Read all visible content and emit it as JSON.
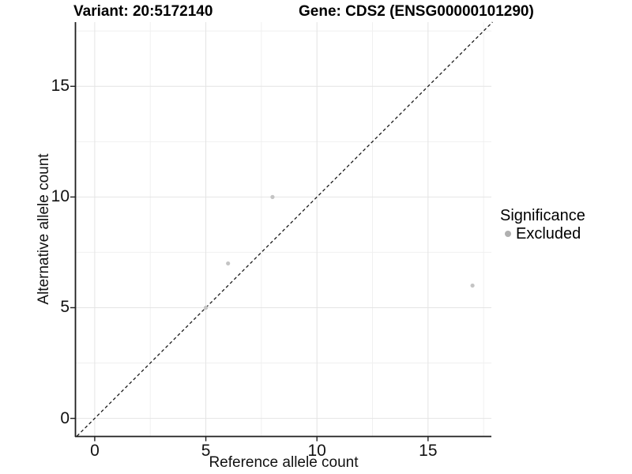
{
  "figure": {
    "title_left": "Variant: 20:5172140",
    "title_right": "Gene: CDS2 (ENSG00000101290)"
  },
  "legend": {
    "title": "Significance",
    "entries": [
      {
        "label": "Excluded",
        "color": "#b0b0b0"
      }
    ]
  },
  "colors": {
    "point": "#c4c4c4",
    "grid_major": "#e4e4e4",
    "grid_minor": "#f0f0f0",
    "axis": "#1f1f1f",
    "reference_line": "#1a1a1a",
    "background": "#ffffff"
  },
  "chart_data": {
    "type": "scatter",
    "xlabel": "Reference allele count",
    "ylabel": "Alternative allele count",
    "xlim": [
      -0.85,
      17.85
    ],
    "ylim": [
      -0.8,
      17.9
    ],
    "x_ticks": [
      0,
      5,
      10,
      15
    ],
    "y_ticks": [
      0,
      5,
      10,
      15
    ],
    "x_minor_ticks": [
      2.5,
      7.5,
      12.5,
      17.5
    ],
    "y_minor_ticks": [
      2.5,
      7.5,
      12.5,
      17.5
    ],
    "grid": "major+minor",
    "legend_position": "right",
    "series": [
      {
        "name": "Excluded",
        "marker": "circle",
        "color": "#c4c4c4",
        "points": [
          [
            5,
            5
          ],
          [
            6,
            7
          ],
          [
            8,
            10
          ],
          [
            17,
            6
          ]
        ]
      }
    ],
    "reference_line": {
      "type": "identity",
      "linestyle": "dashed",
      "from": [
        -0.8,
        -0.8
      ],
      "to": [
        17.9,
        17.9
      ]
    }
  }
}
